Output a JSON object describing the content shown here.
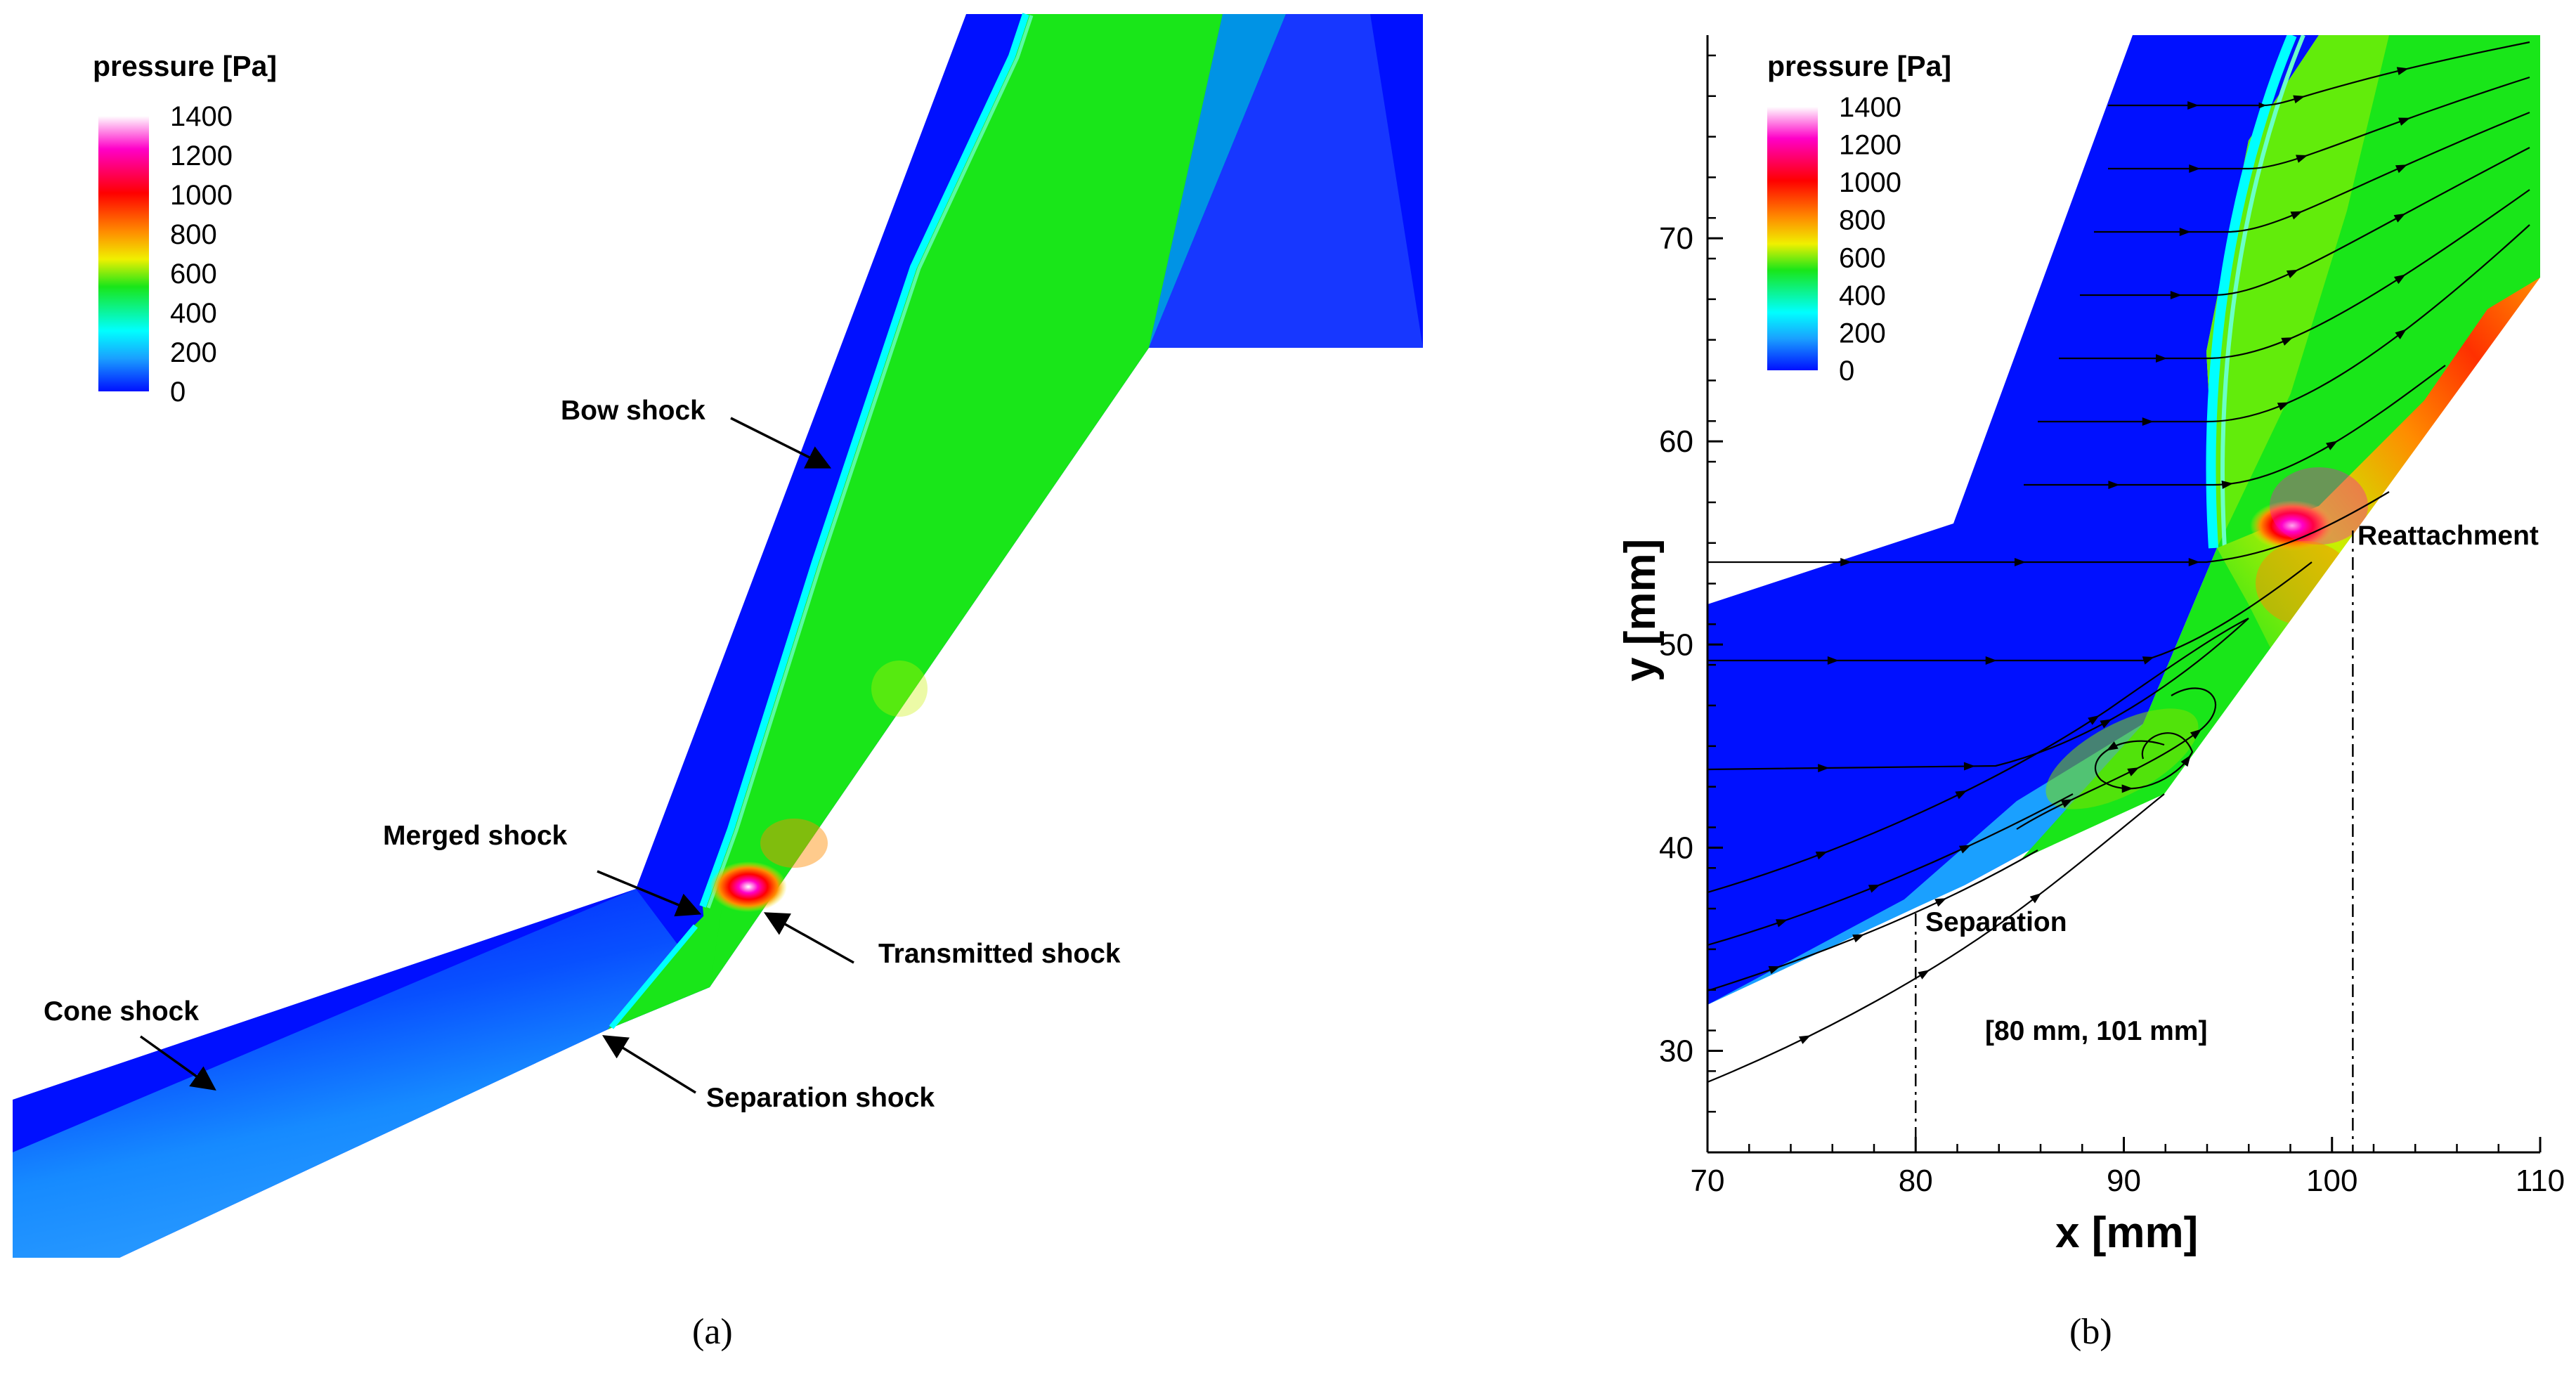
{
  "figure": {
    "caption_a": "(a)",
    "caption_b": "(b)"
  },
  "colors": {
    "low": "#0010ff",
    "mid_blue": "#1aa0ff",
    "cyan": "#00ffff",
    "green": "#19e619",
    "yellow": "#f0f000",
    "orange": "#ff8c00",
    "red": "#ff0000",
    "magenta": "#ff00c8",
    "white": "#ffffff"
  },
  "chart_data": [
    {
      "type": "heatmap",
      "panel": "a",
      "colorbar": {
        "title": "pressure [Pa]",
        "ticks": [
          "1400",
          "1200",
          "1000",
          "800",
          "600",
          "400",
          "200",
          "0"
        ],
        "range": [
          0,
          1400
        ]
      },
      "annotations": [
        "Bow shock",
        "Merged shock",
        "Transmitted shock",
        "Cone shock",
        "Separation shock"
      ]
    },
    {
      "type": "heatmap",
      "panel": "b",
      "colorbar": {
        "title": "pressure [Pa]",
        "ticks": [
          "1400",
          "1200",
          "1000",
          "800",
          "600",
          "400",
          "200",
          "0"
        ],
        "range": [
          0,
          1400
        ]
      },
      "xlabel": "x [mm]",
      "ylabel": "y [mm]",
      "xlim": [
        70,
        110
      ],
      "ylim": [
        25,
        80
      ],
      "xticks": [
        "70",
        "80",
        "90",
        "100",
        "110"
      ],
      "yticks": [
        "30",
        "40",
        "50",
        "60",
        "70"
      ],
      "annotations": [
        "Reattachment",
        "Separation",
        "[80 mm, 101 mm]"
      ],
      "separation_x": 80,
      "reattachment_x": 101
    }
  ]
}
